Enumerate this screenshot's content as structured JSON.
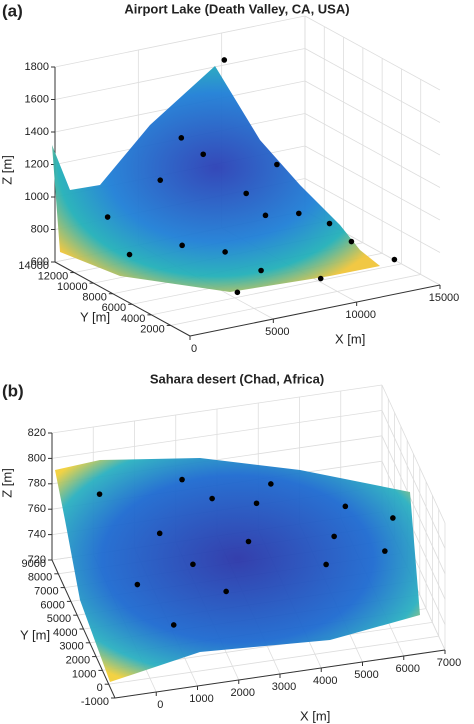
{
  "chart_data": [
    {
      "type": "surface",
      "panel_label": "(a)",
      "title": "Airport Lake (Death Valley, CA, USA)",
      "xlabel": "X [m]",
      "ylabel": "Y [m]",
      "zlabel": "Z [m]",
      "xlim": [
        0,
        15000
      ],
      "ylim": [
        0,
        14000
      ],
      "zlim": [
        600,
        1800
      ],
      "xticks": [
        0,
        5000,
        10000,
        15000
      ],
      "yticks": [
        2000,
        4000,
        6000,
        8000,
        10000,
        12000,
        14000
      ],
      "zticks": [
        600,
        800,
        1000,
        1200,
        1400,
        1600,
        1800
      ],
      "grid": true,
      "point_color": "#000000",
      "points": {
        "x": [
          9000,
          6000,
          4000,
          8000,
          10000,
          3000,
          12000,
          6000,
          2000,
          9000,
          13000,
          5000,
          11000,
          7000,
          4000,
          1000,
          14000,
          8000
        ],
        "y": [
          12000,
          9000,
          10000,
          8000,
          6000,
          6000,
          4000,
          3000,
          12000,
          2000,
          8000,
          5000,
          10000,
          13000,
          2000,
          8000,
          3000,
          6000
        ],
        "z": [
          1720,
          1300,
          1150,
          1050,
          950,
          900,
          800,
          780,
          900,
          700,
          760,
          850,
          1100,
          1250,
          720,
          820,
          680,
          980
        ]
      }
    },
    {
      "type": "surface",
      "panel_label": "(b)",
      "title": "Sahara desert (Chad, Africa)",
      "xlabel": "X [m]",
      "ylabel": "Y [m]",
      "zlabel": "Z [m]",
      "xlim": [
        -1000,
        7000
      ],
      "ylim": [
        -1000,
        9000
      ],
      "zlim": [
        720,
        820
      ],
      "xticks": [
        0,
        1000,
        2000,
        3000,
        4000,
        5000,
        6000,
        7000
      ],
      "yticks": [
        -1000,
        0,
        1000,
        2000,
        3000,
        4000,
        5000,
        6000,
        7000,
        8000,
        9000
      ],
      "zticks": [
        720,
        740,
        760,
        780,
        800,
        820
      ],
      "grid": true,
      "point_color": "#000000",
      "points": {
        "x": [
          0,
          2000,
          4000,
          5500,
          6000,
          1000,
          3000,
          2000,
          4500,
          0,
          3500,
          5000,
          1500,
          500,
          6500,
          2500
        ],
        "y": [
          8000,
          8000,
          7000,
          5000,
          2000,
          5000,
          4000,
          1000,
          1500,
          2000,
          6000,
          3500,
          3000,
          -500,
          4000,
          6500
        ],
        "z": [
          778,
          780,
          778,
          775,
          770,
          775,
          770,
          768,
          772,
          772,
          776,
          770,
          770,
          765,
          772,
          779
        ]
      }
    }
  ]
}
